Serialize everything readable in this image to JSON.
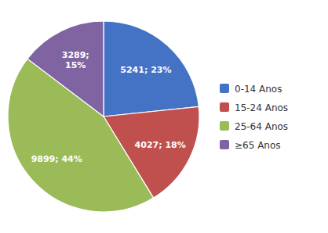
{
  "chart_data": {
    "type": "pie",
    "categories": [
      "0-14 Anos",
      "15-24 Anos",
      "25-64 Anos",
      "≥65 Anos"
    ],
    "values": [
      5241,
      4027,
      9899,
      3289
    ],
    "percentages": [
      23,
      18,
      44,
      15
    ],
    "value_labels": [
      "5241; 23%",
      "4027; 18%",
      "9899; 44%",
      "3289;\n15%"
    ],
    "colors": [
      "#4472C4",
      "#C0504D",
      "#9BBB59",
      "#8064A2"
    ],
    "data_labels": true,
    "legend": "right"
  }
}
